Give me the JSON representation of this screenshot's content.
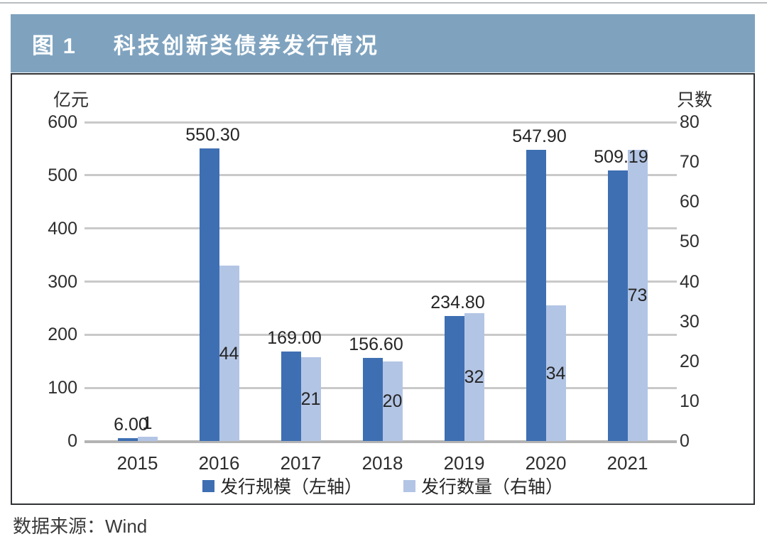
{
  "figure": {
    "label": "图 1",
    "title": "科技创新类债券发行情况"
  },
  "source_note": "数据来源：Wind",
  "colors": {
    "header_bg": "#7fa3bf",
    "header_text": "#ffffff",
    "scale_bar": "#3e6fb2",
    "count_bar": "#b3c5e5",
    "gridline": "#c9c9c9",
    "axis_line": "#b3b3b3",
    "text": "#2e2e2e"
  },
  "chart_data": {
    "type": "bar",
    "title": "科技创新类债券发行情况",
    "categories": [
      "2015",
      "2016",
      "2017",
      "2018",
      "2019",
      "2020",
      "2021"
    ],
    "series": [
      {
        "name": "发行规模（左轴）",
        "axis": "left",
        "color": "#3e6fb2",
        "values": [
          6.0,
          550.3,
          169.0,
          156.6,
          234.8,
          547.9,
          509.19
        ],
        "labels": [
          "6.00",
          "550.30",
          "169.00",
          "156.60",
          "234.80",
          "547.90",
          "509.19"
        ]
      },
      {
        "name": "发行数量（右轴）",
        "axis": "right",
        "color": "#b3c5e5",
        "values": [
          1,
          44,
          21,
          20,
          32,
          34,
          73
        ],
        "labels": [
          "1",
          "44",
          "21",
          "20",
          "32",
          "34",
          "73"
        ]
      }
    ],
    "left_axis": {
      "title": "亿元",
      "min": 0,
      "max": 600,
      "ticks": [
        600,
        500,
        400,
        300,
        200,
        100,
        0
      ]
    },
    "right_axis": {
      "title": "只数",
      "min": 0,
      "max": 80,
      "ticks": [
        80,
        70,
        60,
        50,
        40,
        30,
        20,
        10,
        0
      ]
    },
    "grid": true,
    "legend_position": "bottom"
  }
}
